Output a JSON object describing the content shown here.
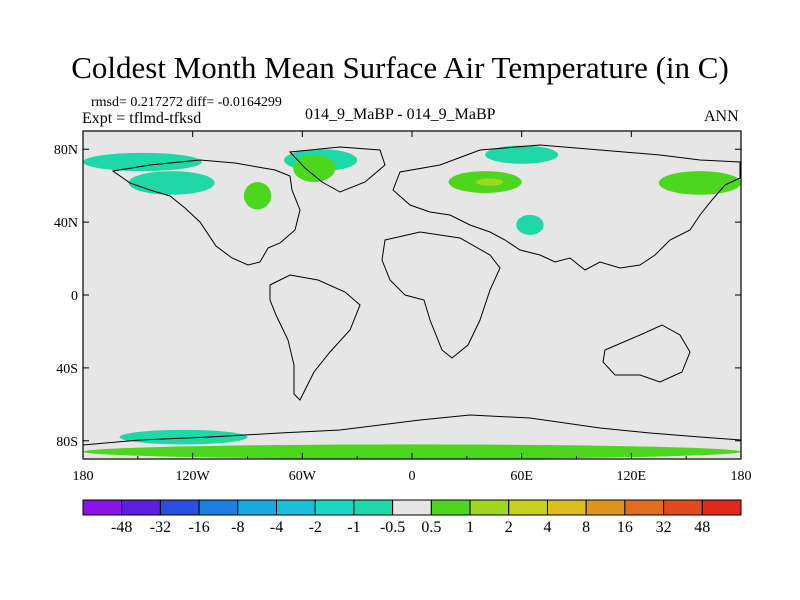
{
  "chart_data": {
    "type": "heatmap",
    "title": "Coldest Month Mean Surface Air Temperature (in C)",
    "stats": "rmsd= 0.217272 diff= -0.0164299",
    "experiment": "Expt = tflmd-tfksd",
    "subtitle": "014_9_MaBP - 014_9_MaBP",
    "period": "ANN",
    "xlim": [
      -180,
      180
    ],
    "ylim": [
      -90,
      90
    ],
    "x_ticks": [
      {
        "value": -180,
        "label": "180"
      },
      {
        "value": -120,
        "label": "120W"
      },
      {
        "value": -60,
        "label": "60W"
      },
      {
        "value": 0,
        "label": "0"
      },
      {
        "value": 60,
        "label": "60E"
      },
      {
        "value": 120,
        "label": "120E"
      },
      {
        "value": 180,
        "label": "180"
      }
    ],
    "y_ticks": [
      {
        "value": 80,
        "label": "80N"
      },
      {
        "value": 40,
        "label": "40N"
      },
      {
        "value": 0,
        "label": "0"
      },
      {
        "value": -40,
        "label": "40S"
      },
      {
        "value": -80,
        "label": "80S"
      }
    ],
    "colorbar": {
      "levels": [
        "-48",
        "-32",
        "-16",
        "-8",
        "-4",
        "-2",
        "-1",
        "-0.5",
        "0.5",
        "1",
        "2",
        "4",
        "8",
        "16",
        "32",
        "48"
      ],
      "colors": [
        "#8a14e6",
        "#5a1fe0",
        "#2a4fe0",
        "#1a7fe0",
        "#1aa8e0",
        "#19c0d8",
        "#19d8c0",
        "#1ed8a8",
        "#e6e6e6",
        "#4dd61e",
        "#a0d61e",
        "#c8d21e",
        "#dcbc1e",
        "#e0961e",
        "#e06e1e",
        "#e04a1e",
        "#e0281e"
      ]
    },
    "background_color": "#e6e6e6",
    "regions": [
      {
        "name": "alaska-canada-cool",
        "bin": "-1..-0.5",
        "color": "#1ed8a8",
        "lon": [
          -155,
          -108
        ],
        "lat": [
          55,
          68
        ]
      },
      {
        "name": "arctic-canada-cool",
        "bin": "-1..-0.5",
        "color": "#1ed8a8",
        "lon": [
          -180,
          -115
        ],
        "lat": [
          68,
          78
        ]
      },
      {
        "name": "north-america-warm",
        "bin": "0.5..1",
        "color": "#4dd61e",
        "lon": [
          -92,
          -77
        ],
        "lat": [
          47,
          62
        ]
      },
      {
        "name": "greenland-cool",
        "bin": "-1..-0.5",
        "color": "#1ed8a8",
        "lon": [
          -70,
          -30
        ],
        "lat": [
          68,
          80
        ]
      },
      {
        "name": "greenland-warm",
        "bin": "0.5..1",
        "color": "#4dd61e",
        "lon": [
          -65,
          -42
        ],
        "lat": [
          62,
          77
        ]
      },
      {
        "name": "russia-warm",
        "bin": "0.5..1",
        "color": "#4dd61e",
        "lon": [
          20,
          60
        ],
        "lat": [
          56,
          68
        ]
      },
      {
        "name": "russia-warmer",
        "bin": "1..2",
        "color": "#a0d61e",
        "lon": [
          35,
          50
        ],
        "lat": [
          60,
          64
        ]
      },
      {
        "name": "siberia-cool",
        "bin": "-1..-0.5",
        "color": "#1ed8a8",
        "lon": [
          40,
          80
        ],
        "lat": [
          72,
          82
        ]
      },
      {
        "name": "central-asia-cool",
        "bin": "-1..-0.5",
        "color": "#1ed8a8",
        "lon": [
          57,
          72
        ],
        "lat": [
          33,
          44
        ]
      },
      {
        "name": "far-east-warm",
        "bin": "0.5..1",
        "color": "#4dd61e",
        "lon": [
          135,
          180
        ],
        "lat": [
          55,
          68
        ]
      },
      {
        "name": "antarctica-warm",
        "bin": "0.5..1",
        "color": "#4dd61e",
        "lon": [
          -180,
          180
        ],
        "lat": [
          -90,
          -82
        ]
      },
      {
        "name": "antarctica-coast-cool",
        "bin": "-1..-0.5",
        "color": "#1ed8a8",
        "lon": [
          -160,
          -90
        ],
        "lat": [
          -82,
          -74
        ]
      }
    ]
  }
}
